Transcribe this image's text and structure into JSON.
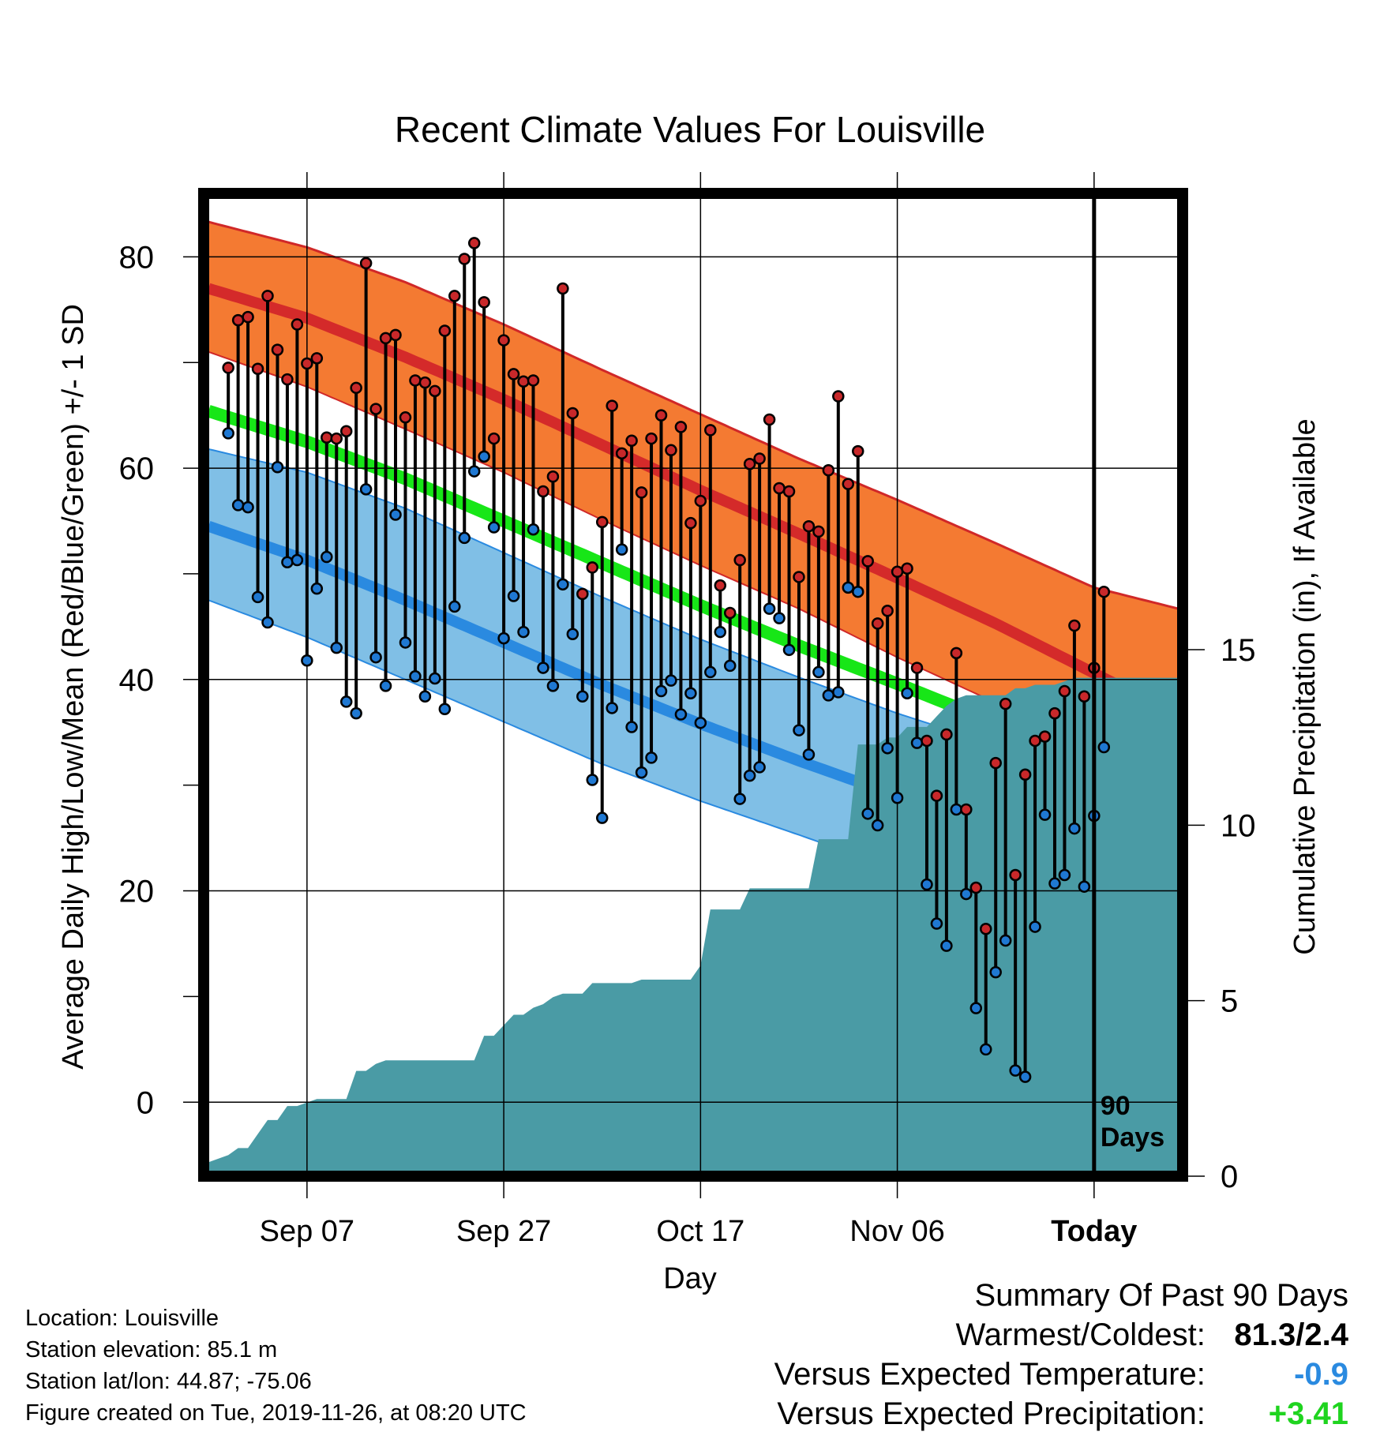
{
  "chart_data": {
    "type": "line",
    "title": "Recent Climate Values For Louisville",
    "xlabel": "Day",
    "ylabel_left": "Average Daily High/Low/Mean (Red/Blue/Green) +/- 1 SD",
    "ylabel_right": "Cumulative Precipitation (in), If Available",
    "x_tick_labels": [
      "Sep 07",
      "Sep 27",
      "Oct 17",
      "Nov 06",
      "Today"
    ],
    "x_tick_days": [
      8,
      28,
      48,
      68,
      88
    ],
    "xlim": [
      -2.5,
      97
    ],
    "ylim_left": [
      -7,
      86
    ],
    "ylim_right": [
      0,
      28
    ],
    "y_ticks_left": [
      0,
      20,
      40,
      60,
      80
    ],
    "y_ticks_right": [
      0,
      5,
      10,
      15
    ],
    "today_marker": "90\nDays",
    "grid": true,
    "normals": {
      "days": [
        -2,
        8,
        18,
        28,
        38,
        48,
        58,
        68,
        78,
        88,
        97
      ],
      "high_mean": [
        77,
        74.2,
        70.5,
        66.5,
        62.2,
        57.9,
        53.8,
        49.6,
        45.3,
        40.6,
        36.4
      ],
      "high_upper": [
        83.3,
        80.9,
        77.6,
        73.6,
        69.3,
        65.1,
        60.9,
        57.0,
        52.9,
        48.7,
        46.6
      ],
      "high_lower": [
        71,
        67.7,
        63.7,
        59.6,
        55.1,
        50.8,
        46.7,
        42.1,
        37.8,
        34.6,
        32.1
      ],
      "low_mean": [
        54.5,
        51.3,
        47.5,
        43.5,
        39.5,
        35.8,
        32.3,
        29.0,
        26.0,
        22.8,
        20.4
      ],
      "low_upper": [
        61.8,
        59.6,
        56.2,
        52.0,
        47.8,
        43.8,
        40.2,
        36.8,
        33.8,
        32.2,
        32.0
      ],
      "low_lower": [
        47.5,
        44,
        40,
        36,
        32,
        28.5,
        25.3,
        22.0,
        18.4,
        18.4,
        18.4
      ],
      "mean": [
        65.4,
        62.5,
        59.0,
        55.0,
        51.0,
        47.0,
        43.2,
        39.6,
        35.9,
        31.7,
        27.4
      ]
    },
    "series": [
      {
        "name": "High",
        "color": "#c8282a",
        "values": [
          69.5,
          74,
          74.3,
          69.4,
          76.3,
          71.2,
          68.4,
          73.6,
          69.9,
          70.4,
          62.9,
          62.8,
          63.5,
          67.6,
          79.4,
          65.6,
          72.3,
          72.6,
          64.8,
          68.3,
          68.1,
          67.3,
          73,
          76.3,
          79.8,
          81.3,
          75.7,
          62.8,
          72.1,
          68.9,
          68.2,
          68.3,
          57.8,
          59.2,
          77,
          65.2,
          48.1,
          50.6,
          54.9,
          65.9,
          61.4,
          62.6,
          57.7,
          62.8,
          65,
          61.7,
          63.9,
          54.8,
          56.9,
          63.6,
          48.9,
          46.3,
          51.3,
          60.4,
          60.9,
          64.6,
          58.1,
          57.8,
          49.7,
          54.5,
          54,
          59.8,
          66.8,
          58.5,
          61.6,
          51.2,
          45.3,
          46.5,
          50.2,
          50.5,
          41.1,
          34.2,
          29,
          34.8,
          42.5,
          27.7,
          20.3,
          16.4,
          32.1,
          37.7,
          21.5,
          31,
          34.2,
          34.6,
          36.8,
          38.9,
          45.1,
          38.4,
          41.1,
          48.3
        ]
      },
      {
        "name": "Low",
        "color": "#1f78d2",
        "values": [
          63.3,
          56.5,
          56.3,
          47.8,
          45.4,
          60.1,
          51.1,
          51.3,
          41.8,
          48.6,
          51.6,
          43,
          37.9,
          36.8,
          58,
          42.1,
          39.4,
          55.6,
          43.5,
          40.3,
          38.4,
          40.1,
          37.2,
          46.9,
          53.4,
          59.7,
          61.1,
          54.4,
          43.9,
          47.9,
          44.5,
          54.2,
          41.1,
          39.4,
          49,
          44.3,
          38.4,
          30.5,
          26.9,
          37.3,
          52.3,
          35.5,
          31.2,
          32.6,
          38.9,
          39.9,
          36.7,
          38.7,
          35.9,
          40.7,
          44.5,
          41.3,
          28.7,
          30.9,
          31.7,
          46.7,
          45.8,
          42.8,
          35.2,
          32.9,
          40.7,
          38.5,
          38.8,
          48.7,
          48.3,
          27.3,
          26.2,
          33.5,
          28.8,
          38.7,
          34,
          20.6,
          16.9,
          14.8,
          27.7,
          19.7,
          8.9,
          5,
          12.3,
          15.3,
          3,
          2.4,
          16.6,
          27.2,
          20.7,
          21.5,
          25.9,
          20.4,
          27.1,
          33.6
        ]
      }
    ],
    "precipitation": {
      "name": "Cumulative Precipitation",
      "color": "#4a9ba5",
      "days": [
        -2,
        0,
        1,
        2,
        3,
        4,
        5,
        6,
        7,
        9,
        10,
        11,
        12,
        13,
        14,
        15,
        16,
        17,
        18,
        19,
        20,
        21,
        22,
        23,
        24,
        25,
        26,
        27,
        28,
        29,
        30,
        31,
        32,
        33,
        34,
        35,
        36,
        37,
        38,
        40,
        41,
        42,
        43,
        44,
        45,
        46,
        47,
        48,
        49,
        50,
        52,
        53,
        54,
        56,
        57,
        59,
        60,
        61,
        62,
        63,
        64,
        65,
        66,
        67,
        68,
        69,
        70,
        71,
        72,
        73,
        74,
        75,
        76,
        77,
        78,
        79,
        80,
        81,
        82,
        83,
        84,
        85,
        86,
        87,
        88,
        89,
        90,
        91,
        92,
        93,
        94,
        95,
        96,
        97
      ],
      "values": [
        0.4,
        0.6,
        0.8,
        0.8,
        1.2,
        1.6,
        1.6,
        2.0,
        2.0,
        2.2,
        2.2,
        2.2,
        2.2,
        3.0,
        3.0,
        3.2,
        3.3,
        3.3,
        3.3,
        3.3,
        3.3,
        3.3,
        3.3,
        3.3,
        3.3,
        3.3,
        4.0,
        4.0,
        4.3,
        4.6,
        4.6,
        4.8,
        4.9,
        5.1,
        5.2,
        5.2,
        5.2,
        5.5,
        5.5,
        5.5,
        5.5,
        5.6,
        5.6,
        5.6,
        5.6,
        5.6,
        5.6,
        6.0,
        7.6,
        7.6,
        7.6,
        8.2,
        8.2,
        8.2,
        8.2,
        8.2,
        9.6,
        9.6,
        9.6,
        9.6,
        12.3,
        12.3,
        12.3,
        12.5,
        12.5,
        12.8,
        12.8,
        12.8,
        13.1,
        13.4,
        13.6,
        13.7,
        13.7,
        13.7,
        13.7,
        13.7,
        13.9,
        13.9,
        14.0,
        14.0,
        14.0,
        14.1,
        14.2,
        14.2,
        14.2,
        14.2,
        14.2,
        14.2,
        14.2,
        14.2,
        14.2,
        14.2,
        14.2,
        14.2
      ]
    },
    "warm_fill_color": "#f47a32",
    "dark_fill_color": "#8e1a1a",
    "mean_color": "#17e617",
    "low_band_color": "#80bfe6"
  },
  "info": {
    "location": "Location: Louisville",
    "elevation": "Station elevation: 85.1 m",
    "latlon": "Station lat/lon: 44.87; -75.06",
    "created": "Figure created on Tue, 2019-11-26, at 08:20 UTC"
  },
  "summary": {
    "heading": "Summary Of Past 90 Days",
    "warmest_label": "Warmest/Coldest:",
    "warmest_value": "81.3/2.4",
    "temp_label": "Versus Expected Temperature:",
    "temp_value": "-0.9",
    "temp_color": "#2a8ae0",
    "precip_label": "Versus Expected Precipitation:",
    "precip_value": "+3.41",
    "precip_color": "#1fd41f"
  }
}
